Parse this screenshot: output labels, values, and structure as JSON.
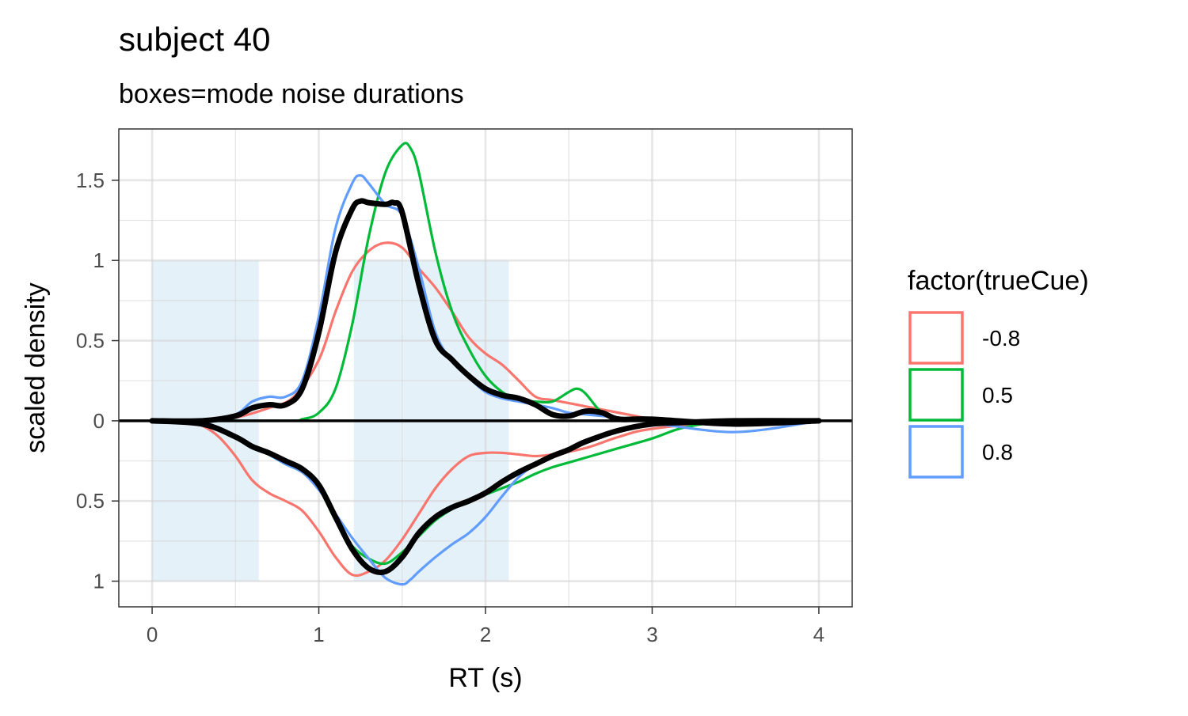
{
  "chart_data": {
    "type": "line",
    "title": "subject 40",
    "subtitle": "boxes=mode noise durations",
    "xlabel": "RT (s)",
    "ylabel": "scaled density",
    "xlim": [
      -0.2,
      4.2
    ],
    "ylim": [
      -1.16,
      1.82
    ],
    "x_ticks": [
      0,
      1,
      2,
      3,
      4
    ],
    "x_tick_labels": [
      "0",
      "1",
      "2",
      "3",
      "4"
    ],
    "y_ticks": [
      1.5,
      1,
      0.5,
      0,
      -0.5,
      -1
    ],
    "y_tick_labels": [
      "1.5",
      "1",
      "0.5",
      "0",
      "0.5",
      "1"
    ],
    "grid": true,
    "legend": {
      "title": "factor(trueCue)",
      "position": "right",
      "entries": [
        {
          "label": "-0.8",
          "color": "#F8766D"
        },
        {
          "label": "0.5",
          "color": "#00BA38"
        },
        {
          "label": "0.8",
          "color": "#619CFF"
        }
      ]
    },
    "noise_boxes": [
      {
        "x0": 0.0,
        "x1": 0.64,
        "y0": -1.0,
        "y1": 1.0
      },
      {
        "x0": 1.21,
        "x1": 2.14,
        "y0": -1.0,
        "y1": 1.0
      }
    ],
    "box_color": "#e5f1f8",
    "series": [
      {
        "name": "-0.8",
        "color": "#F8766D",
        "role": "upper",
        "x": [
          0,
          0.3,
          0.5,
          0.7,
          0.85,
          1.0,
          1.1,
          1.2,
          1.3,
          1.4,
          1.5,
          1.6,
          1.7,
          1.8,
          1.9,
          2.0,
          2.1,
          2.2,
          2.3,
          2.4,
          2.5,
          2.6,
          2.7,
          2.8,
          2.9,
          3.0,
          3.2,
          3.5,
          4.0
        ],
        "y": [
          0,
          0,
          0.02,
          0.08,
          0.15,
          0.38,
          0.68,
          0.93,
          1.06,
          1.11,
          1.08,
          0.95,
          0.83,
          0.68,
          0.52,
          0.42,
          0.35,
          0.25,
          0.15,
          0.13,
          0.11,
          0.09,
          0.07,
          0.05,
          0.03,
          0.01,
          0,
          0,
          0
        ]
      },
      {
        "name": "0.5",
        "color": "#00BA38",
        "role": "upper",
        "x": [
          0,
          0.8,
          0.9,
          1.0,
          1.1,
          1.2,
          1.3,
          1.4,
          1.5,
          1.55,
          1.6,
          1.7,
          1.8,
          1.9,
          2.0,
          2.1,
          2.2,
          2.3,
          2.4,
          2.5,
          2.55,
          2.6,
          2.7,
          2.8,
          3.0,
          4.0
        ],
        "y": [
          0,
          0,
          0.01,
          0.05,
          0.2,
          0.6,
          1.15,
          1.55,
          1.72,
          1.7,
          1.55,
          1.05,
          0.68,
          0.45,
          0.28,
          0.18,
          0.13,
          0.12,
          0.12,
          0.18,
          0.2,
          0.17,
          0.05,
          0.02,
          0,
          0
        ]
      },
      {
        "name": "0.8",
        "color": "#619CFF",
        "role": "upper",
        "x": [
          0,
          0.3,
          0.5,
          0.6,
          0.7,
          0.8,
          0.9,
          1.0,
          1.1,
          1.2,
          1.25,
          1.3,
          1.4,
          1.5,
          1.6,
          1.7,
          1.8,
          1.9,
          2.0,
          2.1,
          2.2,
          2.3,
          2.4,
          2.5,
          2.6,
          2.7,
          2.8,
          3.0,
          4.0
        ],
        "y": [
          0,
          0,
          0.04,
          0.12,
          0.15,
          0.15,
          0.25,
          0.65,
          1.2,
          1.48,
          1.53,
          1.48,
          1.35,
          1.28,
          0.95,
          0.55,
          0.37,
          0.27,
          0.18,
          0.14,
          0.12,
          0.1,
          0.08,
          0.05,
          0.04,
          0.03,
          0.02,
          0,
          0
        ]
      },
      {
        "name": "-0.8",
        "color": "#F8766D",
        "role": "lower",
        "x": [
          0,
          0.2,
          0.3,
          0.4,
          0.5,
          0.6,
          0.7,
          0.8,
          0.9,
          1.0,
          1.1,
          1.2,
          1.3,
          1.4,
          1.5,
          1.6,
          1.7,
          1.8,
          1.9,
          2.0,
          2.1,
          2.2,
          2.3,
          2.4,
          2.6,
          2.8,
          3.0,
          3.5,
          4.0
        ],
        "y": [
          0,
          0,
          -0.03,
          -0.1,
          -0.22,
          -0.37,
          -0.45,
          -0.5,
          -0.56,
          -0.69,
          -0.85,
          -0.96,
          -0.94,
          -0.87,
          -0.74,
          -0.58,
          -0.42,
          -0.3,
          -0.22,
          -0.2,
          -0.2,
          -0.21,
          -0.22,
          -0.21,
          -0.17,
          -0.1,
          -0.05,
          0,
          0
        ]
      },
      {
        "name": "0.5",
        "color": "#00BA38",
        "role": "lower",
        "x": [
          0,
          0.3,
          0.5,
          0.7,
          0.8,
          0.9,
          1.0,
          1.1,
          1.2,
          1.3,
          1.4,
          1.5,
          1.6,
          1.7,
          1.8,
          1.9,
          2.0,
          2.1,
          2.2,
          2.3,
          2.4,
          2.5,
          2.6,
          2.7,
          2.8,
          3.0,
          3.2,
          3.5,
          4.0
        ],
        "y": [
          0,
          -0.02,
          -0.1,
          -0.21,
          -0.27,
          -0.32,
          -0.42,
          -0.62,
          -0.78,
          -0.86,
          -0.89,
          -0.82,
          -0.72,
          -0.62,
          -0.55,
          -0.5,
          -0.46,
          -0.42,
          -0.38,
          -0.33,
          -0.29,
          -0.26,
          -0.23,
          -0.2,
          -0.17,
          -0.11,
          -0.04,
          0,
          0
        ]
      },
      {
        "name": "0.8",
        "color": "#619CFF",
        "role": "lower",
        "x": [
          0,
          0.3,
          0.5,
          0.7,
          0.8,
          0.9,
          1.0,
          1.1,
          1.2,
          1.3,
          1.4,
          1.5,
          1.55,
          1.6,
          1.7,
          1.8,
          1.9,
          2.0,
          2.1,
          2.2,
          2.3,
          2.4,
          2.5,
          2.6,
          2.8,
          3.0,
          3.5,
          4.0
        ],
        "y": [
          0,
          -0.02,
          -0.1,
          -0.21,
          -0.27,
          -0.32,
          -0.43,
          -0.58,
          -0.73,
          -0.86,
          -0.98,
          -1.02,
          -0.99,
          -0.94,
          -0.85,
          -0.77,
          -0.7,
          -0.6,
          -0.47,
          -0.35,
          -0.27,
          -0.22,
          -0.17,
          -0.12,
          -0.06,
          -0.02,
          -0.07,
          0
        ]
      },
      {
        "name": "",
        "color": "#000000",
        "role": "overall-upper",
        "x": [
          0,
          0.3,
          0.5,
          0.6,
          0.7,
          0.8,
          0.9,
          1.0,
          1.1,
          1.2,
          1.25,
          1.3,
          1.4,
          1.45,
          1.5,
          1.6,
          1.7,
          1.8,
          1.9,
          2.0,
          2.1,
          2.2,
          2.3,
          2.4,
          2.5,
          2.6,
          2.7,
          2.8,
          3.0,
          3.5,
          4.0
        ],
        "y": [
          0,
          0,
          0.03,
          0.08,
          0.1,
          0.1,
          0.2,
          0.55,
          1.05,
          1.32,
          1.37,
          1.36,
          1.35,
          1.36,
          1.3,
          0.85,
          0.5,
          0.38,
          0.28,
          0.2,
          0.16,
          0.14,
          0.1,
          0.04,
          0.03,
          0.06,
          0.05,
          0.01,
          0.01,
          -0.02,
          0
        ]
      },
      {
        "name": "",
        "color": "#000000",
        "role": "overall-lower",
        "x": [
          0,
          0.3,
          0.5,
          0.6,
          0.7,
          0.8,
          0.9,
          1.0,
          1.1,
          1.2,
          1.3,
          1.4,
          1.5,
          1.6,
          1.7,
          1.8,
          1.9,
          2.0,
          2.1,
          2.2,
          2.3,
          2.4,
          2.5,
          2.6,
          2.8,
          3.0,
          3.2,
          3.5,
          4.0
        ],
        "y": [
          0,
          -0.02,
          -0.1,
          -0.16,
          -0.2,
          -0.25,
          -0.3,
          -0.4,
          -0.6,
          -0.8,
          -0.92,
          -0.94,
          -0.85,
          -0.7,
          -0.6,
          -0.54,
          -0.5,
          -0.45,
          -0.38,
          -0.32,
          -0.27,
          -0.22,
          -0.18,
          -0.13,
          -0.06,
          -0.02,
          -0.01,
          0,
          0
        ]
      }
    ]
  }
}
